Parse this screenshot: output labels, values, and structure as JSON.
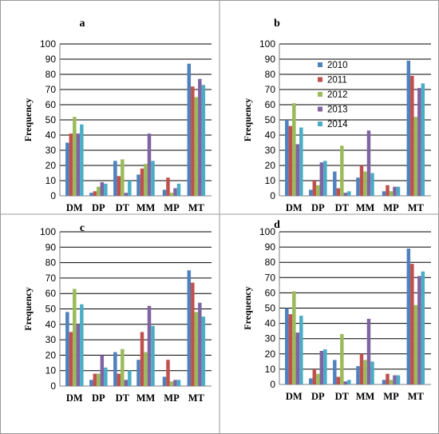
{
  "colors": [
    "#4f81bd",
    "#c0504d",
    "#9bbb59",
    "#8064a2",
    "#4bacc6"
  ],
  "legend_panel": 1,
  "chart_data": [
    {
      "type": "bar",
      "title": "a",
      "ylabel": "Frequency",
      "ylim": [
        0,
        100
      ],
      "yticks": [
        0,
        10,
        20,
        30,
        40,
        50,
        60,
        70,
        80,
        90,
        100
      ],
      "categories": [
        "DM",
        "DP",
        "DT",
        "MM",
        "MP",
        "MT"
      ],
      "series": [
        {
          "name": "2010",
          "values": [
            35,
            2,
            23,
            14,
            4,
            87
          ]
        },
        {
          "name": "2011",
          "values": [
            41,
            3,
            13,
            18,
            12,
            72
          ]
        },
        {
          "name": "2012",
          "values": [
            52,
            6,
            24,
            21,
            2,
            65
          ]
        },
        {
          "name": "2013",
          "values": [
            41,
            9,
            2,
            41,
            5,
            77
          ]
        },
        {
          "name": "2014",
          "values": [
            47,
            8,
            10,
            23,
            8,
            73
          ]
        }
      ]
    },
    {
      "type": "bar",
      "title": "b",
      "ylabel": "Frequency",
      "ylim": [
        0,
        100
      ],
      "yticks": [
        0,
        10,
        20,
        30,
        40,
        50,
        60,
        70,
        80,
        90,
        100
      ],
      "categories": [
        "DM",
        "DP",
        "DT",
        "MM",
        "MP",
        "MT"
      ],
      "legend": "top-right",
      "series": [
        {
          "name": "2010",
          "values": [
            50,
            4,
            16,
            12,
            3,
            89
          ]
        },
        {
          "name": "2011",
          "values": [
            46,
            10,
            5,
            20,
            7,
            79
          ]
        },
        {
          "name": "2012",
          "values": [
            61,
            7,
            33,
            16,
            3,
            52
          ]
        },
        {
          "name": "2013",
          "values": [
            34,
            22,
            2,
            43,
            6,
            71
          ]
        },
        {
          "name": "2014",
          "values": [
            45,
            23,
            3,
            15,
            6,
            74
          ]
        }
      ]
    },
    {
      "type": "bar",
      "title": "c",
      "ylabel": "Frequency",
      "ylim": [
        0,
        100
      ],
      "yticks": [
        0,
        10,
        20,
        30,
        40,
        50,
        60,
        70,
        80,
        90,
        100
      ],
      "categories": [
        "DM",
        "DP",
        "DT",
        "MM",
        "MP",
        "MT"
      ],
      "series": [
        {
          "name": "2010",
          "values": [
            48,
            4,
            22,
            17,
            6,
            75
          ]
        },
        {
          "name": "2011",
          "values": [
            35,
            8,
            8,
            35,
            17,
            67
          ]
        },
        {
          "name": "2012",
          "values": [
            63,
            8,
            24,
            22,
            3,
            48
          ]
        },
        {
          "name": "2013",
          "values": [
            40,
            20,
            4,
            52,
            4,
            54
          ]
        },
        {
          "name": "2014",
          "values": [
            53,
            12,
            10,
            39,
            4,
            45
          ]
        }
      ]
    },
    {
      "type": "bar",
      "title": "d",
      "ylabel": "Frequency",
      "ylim": [
        0,
        100
      ],
      "yticks": [
        0,
        10,
        20,
        30,
        40,
        50,
        60,
        70,
        80,
        90,
        100
      ],
      "categories": [
        "DM",
        "DP",
        "DT",
        "MM",
        "MP",
        "MT"
      ],
      "series": [
        {
          "name": "2010",
          "values": [
            50,
            4,
            16,
            12,
            3,
            89
          ]
        },
        {
          "name": "2011",
          "values": [
            46,
            10,
            5,
            20,
            7,
            79
          ]
        },
        {
          "name": "2012",
          "values": [
            61,
            7,
            33,
            16,
            3,
            52
          ]
        },
        {
          "name": "2013",
          "values": [
            34,
            22,
            2,
            43,
            6,
            71
          ]
        },
        {
          "name": "2014",
          "values": [
            45,
            23,
            3,
            15,
            6,
            74
          ]
        }
      ]
    }
  ]
}
